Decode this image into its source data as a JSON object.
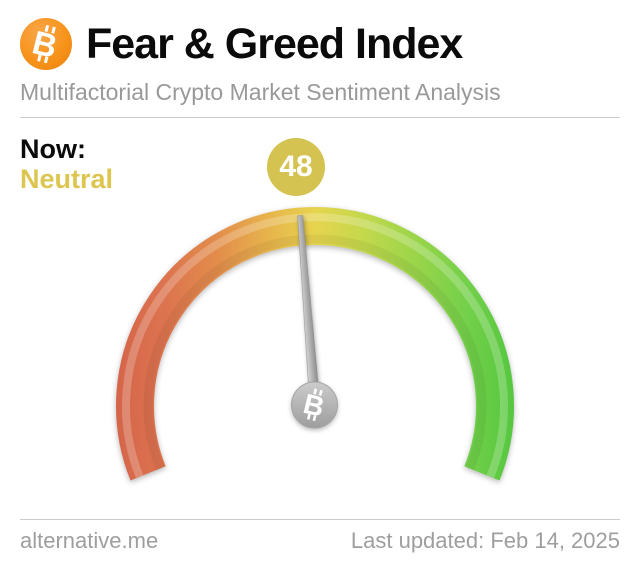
{
  "header": {
    "title": "Fear & Greed Index",
    "subtitle": "Multifactorial Crypto Market Sentiment Analysis"
  },
  "now": {
    "label": "Now:",
    "classification": "Neutral",
    "value": "48"
  },
  "footer": {
    "site": "alternative.me",
    "last_updated": "Last updated: Feb 14, 2025"
  },
  "icons": {
    "bitcoin_glyph": "B"
  },
  "colors": {
    "bitcoin_orange": "#f7931a",
    "title_black": "#0b0b0b",
    "subtitle_gray": "#999999",
    "divider_gray": "#cccccc",
    "neutral_text": "#dcc64f",
    "badge_background": "#d5c351",
    "badge_text": "#ffffff",
    "needle_gray": "#aaaaaa",
    "coin_gray": "#b3b3b3",
    "footer_gray": "#9e9e9e"
  },
  "chart_data": {
    "type": "gauge",
    "title": "Fear & Greed Index",
    "value": 48,
    "min": 0,
    "max": 100,
    "classification": "Neutral",
    "arc_span_degrees": 224,
    "badge_radius": 240,
    "arc_gradient_left_to_right": [
      "#d5654a",
      "#dc734f",
      "#e28c4b",
      "#e7b04c",
      "#e7d44e",
      "#c4d84c",
      "#9bd54a",
      "#74d04a",
      "#55c73f"
    ],
    "scale_direction": "red (left, fear) to green (right, greed)"
  }
}
